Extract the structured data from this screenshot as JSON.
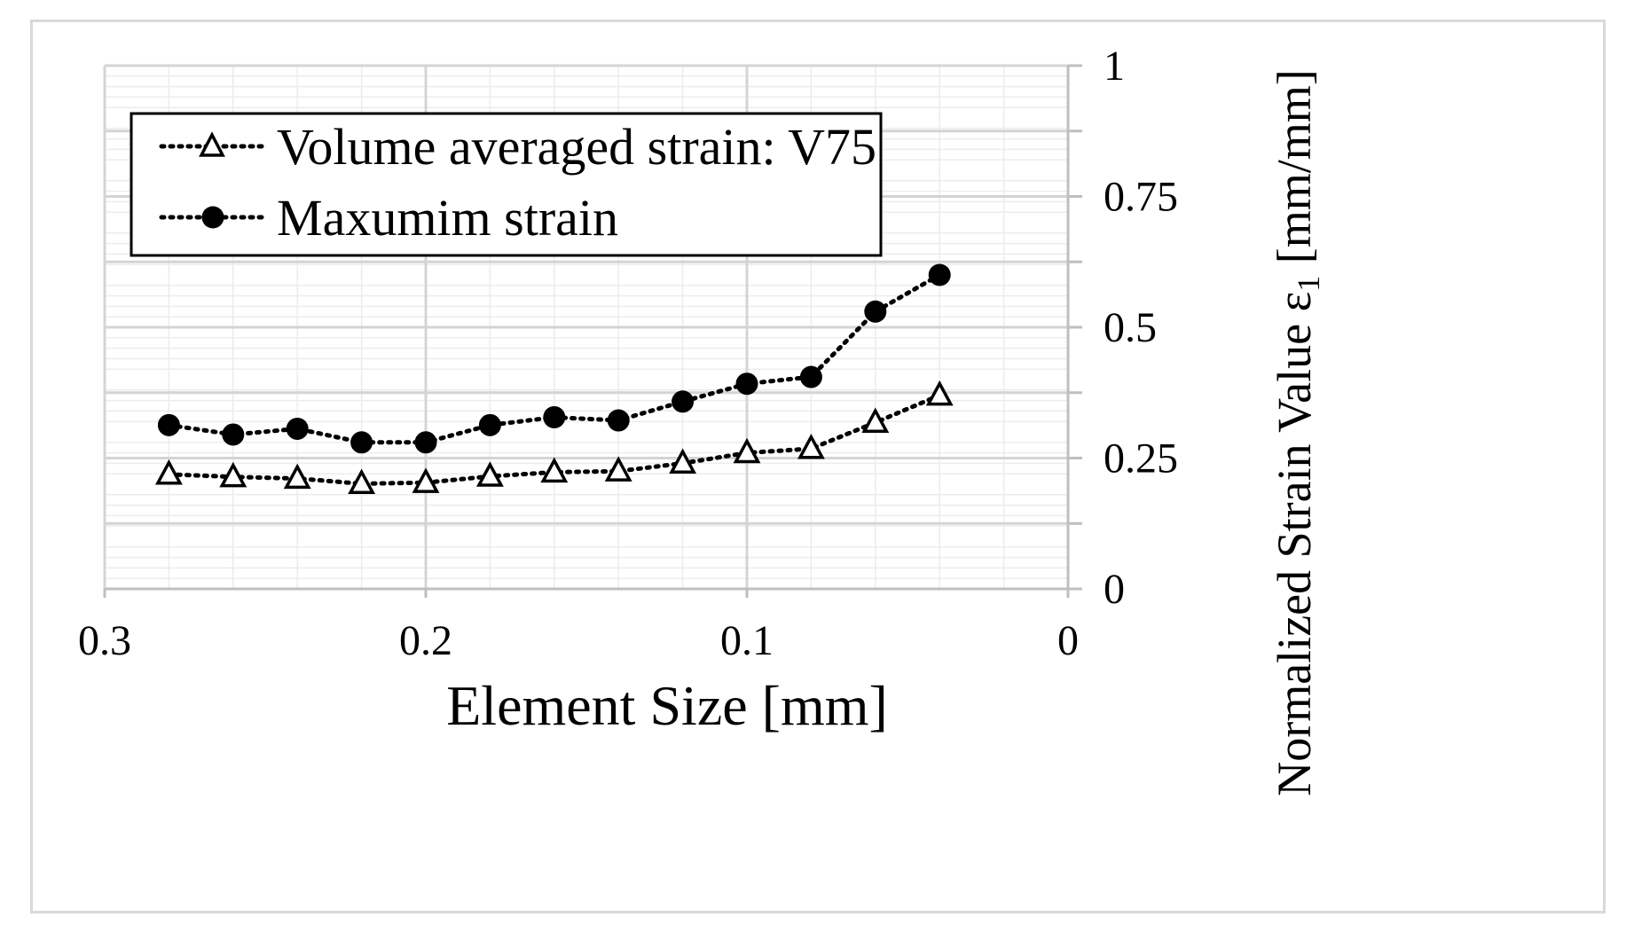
{
  "chart_data": {
    "type": "line",
    "title": "",
    "xlabel": "Element Size [mm]",
    "ylabel": "Normalized Strain Value ε",
    "ylabel_sub": "1",
    "ylabel_unit": " [mm/mm]",
    "x_reversed": true,
    "xlim": [
      0,
      0.3
    ],
    "ylim": [
      0,
      1
    ],
    "x_ticks": [
      0.3,
      0.2,
      0.1,
      0
    ],
    "x_tick_labels": [
      "0.3",
      "0.2",
      "0.1",
      "0"
    ],
    "y_ticks": [
      0,
      0.25,
      0.5,
      0.75,
      1
    ],
    "y_tick_labels": [
      "0",
      "0.25",
      "0.5",
      "0.75",
      "1"
    ],
    "grid": true,
    "y_axis_side": "right",
    "legend_position": "top-left",
    "x": [
      0.28,
      0.26,
      0.24,
      0.22,
      0.2,
      0.18,
      0.16,
      0.14,
      0.12,
      0.1,
      0.08,
      0.06,
      0.04
    ],
    "series": [
      {
        "name": "Volume averaged strain: V75",
        "marker": "triangle-open",
        "values": [
          0.219,
          0.214,
          0.211,
          0.201,
          0.203,
          0.215,
          0.223,
          0.225,
          0.24,
          0.26,
          0.268,
          0.318,
          0.37
        ]
      },
      {
        "name": "Maxumim strain",
        "marker": "circle-filled",
        "values": [
          0.313,
          0.295,
          0.306,
          0.28,
          0.28,
          0.313,
          0.328,
          0.322,
          0.358,
          0.392,
          0.405,
          0.53,
          0.6
        ]
      }
    ]
  }
}
